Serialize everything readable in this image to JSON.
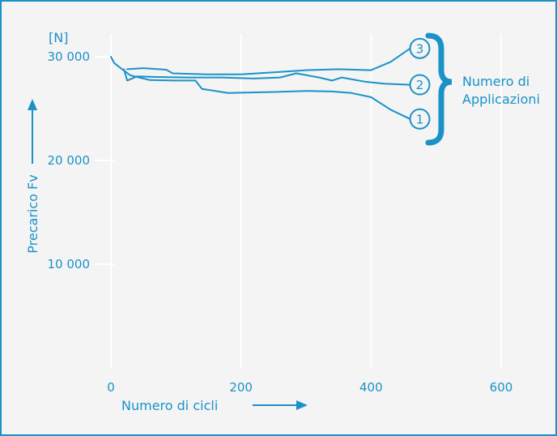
{
  "chart_data": {
    "type": "line",
    "xlabel": "Numero di cicli",
    "ylabel": "Precarico Fv",
    "y_unit": "[N]",
    "xlim": [
      0,
      600
    ],
    "ylim": [
      0,
      30000
    ],
    "x_ticks": [
      "0",
      "200",
      "400",
      "600"
    ],
    "y_ticks": [
      "10 000",
      "20 000",
      "30 000"
    ],
    "grid": "vertical",
    "legend": {
      "title_lines": [
        "Numero di",
        "Applicazioni"
      ]
    },
    "series": [
      {
        "name": "1",
        "x": [
          0,
          5,
          15,
          30,
          60,
          100,
          130,
          140,
          180,
          250,
          300,
          340,
          370,
          400,
          430,
          460
        ],
        "y": [
          30000,
          29400,
          28900,
          28200,
          27750,
          27700,
          27700,
          26900,
          26500,
          26600,
          26700,
          26650,
          26500,
          26100,
          24900,
          24000
        ]
      },
      {
        "name": "2",
        "x": [
          20,
          25,
          40,
          70,
          120,
          170,
          220,
          260,
          285,
          320,
          340,
          355,
          390,
          420,
          460
        ],
        "y": [
          28800,
          27700,
          28100,
          28050,
          28000,
          28000,
          27900,
          28000,
          28400,
          28000,
          27700,
          28000,
          27600,
          27400,
          27300
        ]
      },
      {
        "name": "3",
        "x": [
          25,
          50,
          85,
          95,
          150,
          200,
          250,
          300,
          350,
          400,
          430,
          460
        ],
        "y": [
          28800,
          28900,
          28750,
          28400,
          28300,
          28300,
          28500,
          28700,
          28800,
          28700,
          29500,
          30800
        ]
      }
    ],
    "line_color": "#1a92c8"
  }
}
